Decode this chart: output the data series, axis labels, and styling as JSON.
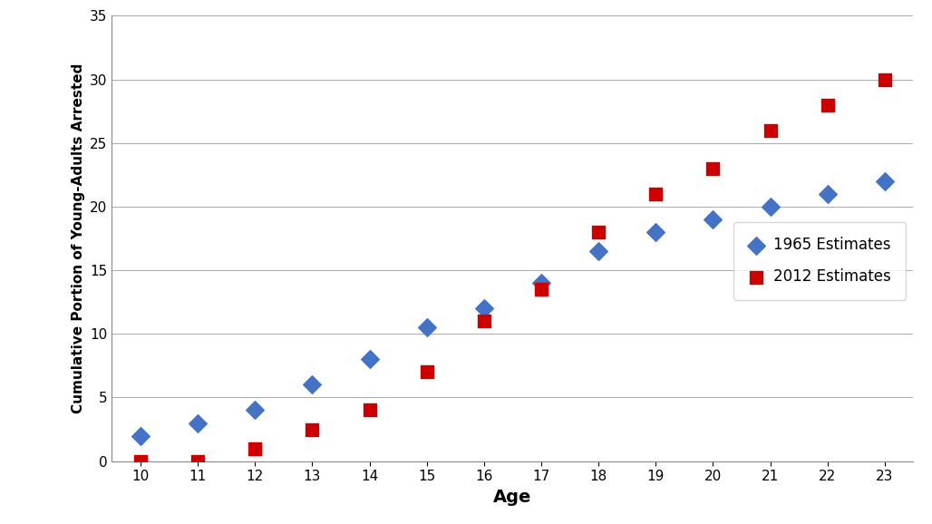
{
  "ages": [
    10,
    11,
    12,
    13,
    14,
    15,
    16,
    17,
    18,
    19,
    20,
    21,
    22,
    23
  ],
  "series_1965": [
    2,
    3,
    4,
    6,
    8,
    10.5,
    12,
    14,
    16.5,
    18,
    19,
    20,
    21,
    22
  ],
  "series_2012": [
    0,
    0,
    1,
    2.5,
    4,
    7,
    11,
    13.5,
    18,
    21,
    23,
    26,
    28,
    30
  ],
  "color_1965": "#4472C4",
  "color_2012": "#CC0000",
  "marker_1965": "D",
  "marker_2012": "s",
  "label_1965": "1965 Estimates",
  "label_2012": "2012 Estimates",
  "xlabel": "Age",
  "ylabel": "Cumulative Portion of Young-Adults Arrested",
  "ylim": [
    0,
    35
  ],
  "xlim": [
    9.5,
    23.5
  ],
  "yticks": [
    0,
    5,
    10,
    15,
    20,
    25,
    30,
    35
  ],
  "xticks": [
    10,
    11,
    12,
    13,
    14,
    15,
    16,
    17,
    18,
    19,
    20,
    21,
    22,
    23
  ],
  "background_color": "#FFFFFF",
  "grid_color": "#AAAAAA",
  "marker_size": 10,
  "xlabel_fontsize": 14,
  "ylabel_fontsize": 11,
  "tick_fontsize": 11,
  "legend_fontsize": 12
}
